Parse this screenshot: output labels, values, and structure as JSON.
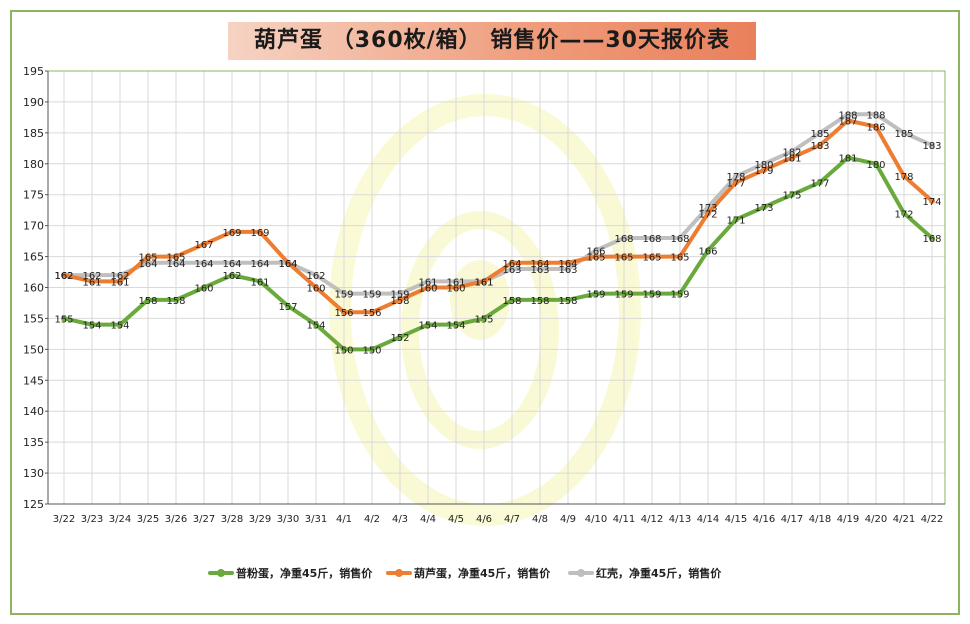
{
  "title": "葫芦蛋 （360枚/箱） 销售价——30天报价表",
  "chart_data": {
    "type": "line",
    "categories": [
      "3/22",
      "3/23",
      "3/24",
      "3/25",
      "3/26",
      "3/27",
      "3/28",
      "3/29",
      "3/30",
      "3/31",
      "4/1",
      "4/2",
      "4/3",
      "4/4",
      "4/5",
      "4/6",
      "4/7",
      "4/8",
      "4/9",
      "4/10",
      "4/11",
      "4/12",
      "4/13",
      "4/14",
      "4/15",
      "4/16",
      "4/17",
      "4/18",
      "4/19",
      "4/20",
      "4/21",
      "4/22"
    ],
    "ylim": [
      125,
      195
    ],
    "yticks": [
      125,
      130,
      135,
      140,
      145,
      150,
      155,
      160,
      165,
      170,
      175,
      180,
      185,
      190,
      195
    ],
    "grid": true,
    "legend_position": "bottom",
    "series": [
      {
        "name": "普粉蛋，净重45斤，销售价",
        "color": "#6aaa3c",
        "values": [
          155,
          154,
          154,
          158,
          158,
          160,
          162,
          161,
          157,
          154,
          150,
          150,
          152,
          154,
          154,
          155,
          158,
          158,
          158,
          159,
          159,
          159,
          159,
          166,
          171,
          173,
          175,
          177,
          181,
          180,
          172,
          168
        ]
      },
      {
        "name": "葫芦蛋，净重45斤，销售价",
        "color": "#ed7d31",
        "values": [
          162,
          161,
          161,
          165,
          165,
          167,
          169,
          169,
          164,
          160,
          156,
          156,
          158,
          160,
          160,
          161,
          164,
          164,
          164,
          165,
          165,
          165,
          165,
          172,
          177,
          179,
          181,
          183,
          187,
          186,
          178,
          174
        ]
      },
      {
        "name": "红壳，净重45斤，销售价",
        "color": "#bfbfbf",
        "values": [
          162,
          162,
          162,
          164,
          164,
          164,
          164,
          164,
          164,
          162,
          159,
          159,
          159,
          161,
          161,
          161,
          163,
          163,
          163,
          166,
          168,
          168,
          168,
          173,
          178,
          180,
          182,
          185,
          188,
          188,
          185,
          183
        ]
      }
    ]
  }
}
